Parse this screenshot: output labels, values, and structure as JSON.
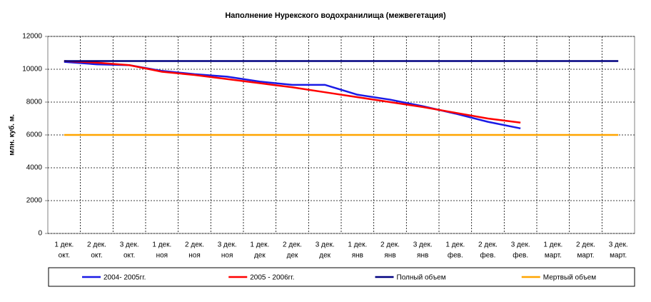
{
  "chart_data": {
    "type": "line",
    "title": "Наполнение Нурекского водохранилища (межвегетация)",
    "y_label": "млн. куб. м.",
    "categories": [
      [
        "1 дек.",
        "окт."
      ],
      [
        "2 дек.",
        "окт."
      ],
      [
        "3 дек.",
        "окт."
      ],
      [
        "1 дек.",
        "ноя"
      ],
      [
        "2 дек.",
        "ноя"
      ],
      [
        "3 дек.",
        "ноя"
      ],
      [
        "1 дек.",
        "дек"
      ],
      [
        "2 дек.",
        "дек"
      ],
      [
        "3 дек.",
        "дек"
      ],
      [
        "1 дек.",
        "янв"
      ],
      [
        "2 дек.",
        "янв"
      ],
      [
        "3 дек.",
        "янв"
      ],
      [
        "1 дек.",
        "фев."
      ],
      [
        "2 дек.",
        "фев."
      ],
      [
        "3 дек.",
        "фев."
      ],
      [
        "1 дек.",
        "март."
      ],
      [
        "2 дек.",
        "март."
      ],
      [
        "3 дек.",
        "март."
      ]
    ],
    "series": [
      {
        "name": "2004- 2005гг.",
        "color": "#1a1ae6",
        "values": [
          10450,
          10300,
          10250,
          9900,
          9700,
          9550,
          9250,
          9050,
          9050,
          8450,
          8150,
          7750,
          7300,
          6800,
          6400,
          null,
          null,
          null
        ]
      },
      {
        "name": "2005 - 2006гг.",
        "color": "#ff0000",
        "values": [
          10500,
          10400,
          10250,
          9850,
          9650,
          9400,
          9150,
          8900,
          8600,
          8300,
          8000,
          7700,
          7350,
          7000,
          6750,
          null,
          null,
          null
        ]
      },
      {
        "name": "Полный объем",
        "color": "#000080",
        "values": [
          10500,
          10500,
          10500,
          10500,
          10500,
          10500,
          10500,
          10500,
          10500,
          10500,
          10500,
          10500,
          10500,
          10500,
          10500,
          10500,
          10500,
          10500
        ]
      },
      {
        "name": "Мертвый объем",
        "color": "#ffa500",
        "values": [
          6000,
          6000,
          6000,
          6000,
          6000,
          6000,
          6000,
          6000,
          6000,
          6000,
          6000,
          6000,
          6000,
          6000,
          6000,
          6000,
          6000,
          6000
        ]
      }
    ],
    "ylim": [
      0,
      12000
    ],
    "yticks": [
      0,
      2000,
      4000,
      6000,
      8000,
      10000,
      12000
    ],
    "grid": true,
    "legend": "bottom"
  }
}
